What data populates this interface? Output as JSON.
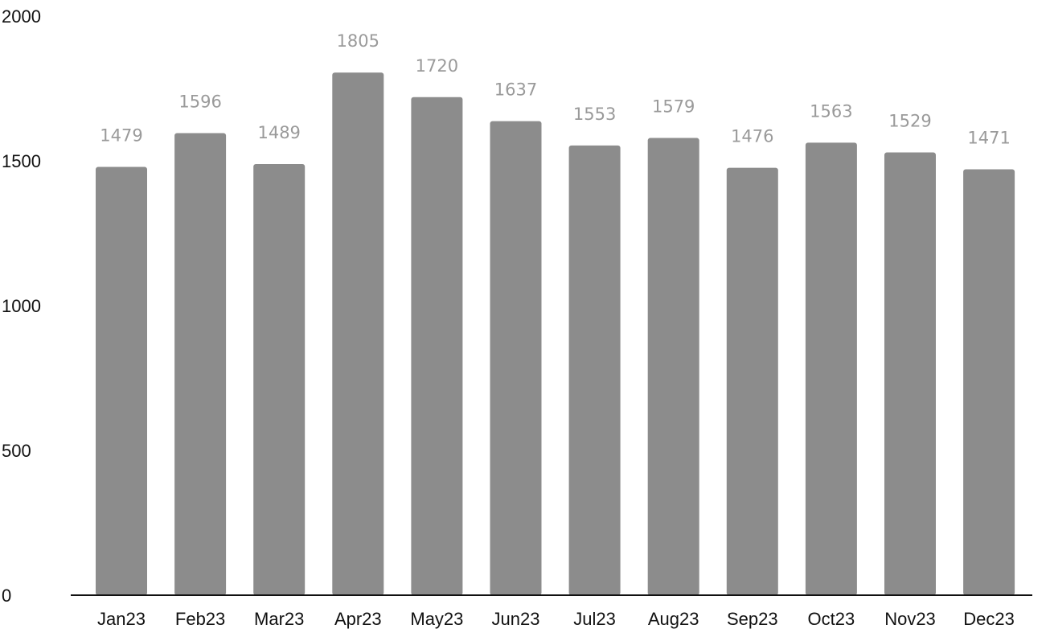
{
  "chart_data": {
    "type": "bar",
    "title": "",
    "xlabel": "",
    "ylabel": "",
    "categories": [
      "Jan23",
      "Feb23",
      "Mar23",
      "Apr23",
      "May23",
      "Jun23",
      "Jul23",
      "Aug23",
      "Sep23",
      "Oct23",
      "Nov23",
      "Dec23"
    ],
    "values": [
      1479,
      1596,
      1489,
      1805,
      1720,
      1637,
      1553,
      1579,
      1476,
      1563,
      1529,
      1471
    ],
    "ylim": [
      0,
      2000
    ],
    "yticks": [
      "0",
      "500",
      "1000",
      "1500",
      "2000"
    ],
    "grid": false,
    "legend": "none",
    "colors": {
      "bar": "#8c8c8c",
      "data_label": "#9a9a9a",
      "axis": "#111111",
      "text": "#111111"
    }
  }
}
